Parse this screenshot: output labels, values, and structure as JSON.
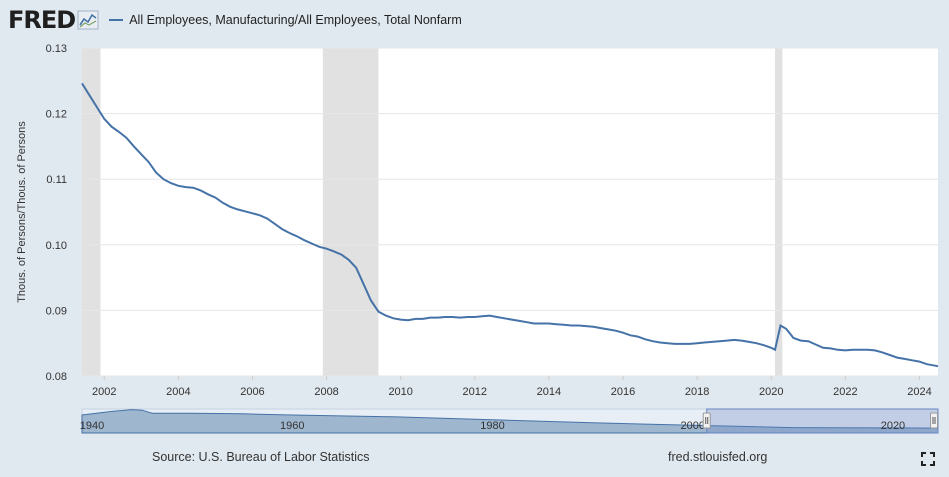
{
  "header": {
    "logo_text": "FRED",
    "legend_label": "All Employees, Manufacturing/All Employees, Total Nonfarm"
  },
  "footer": {
    "source": "Source: U.S. Bureau of Labor Statistics",
    "url": "fred.stlouisfed.org"
  },
  "colors": {
    "series": "#4572a7",
    "recession": "#e1e1e1",
    "page_bg": "#e1e9f0",
    "plot_bg": "#ffffff"
  },
  "icons": [
    "fred-chart-icon",
    "fullscreen-icon"
  ],
  "chart_data": {
    "type": "line",
    "title": "",
    "ylabel": "Thous. of Persons/Thous. of Persons",
    "xlabel": "",
    "ylim": [
      0.08,
      0.13
    ],
    "xlim": [
      2001.4,
      2024.5
    ],
    "yticks": [
      "0.08",
      "0.09",
      "0.10",
      "0.11",
      "0.12",
      "0.13"
    ],
    "xticks": [
      "2002",
      "2004",
      "2006",
      "2008",
      "2010",
      "2012",
      "2014",
      "2016",
      "2018",
      "2020",
      "2022",
      "2024"
    ],
    "grid": true,
    "legend_position": "top",
    "recessions": [
      [
        2001.4,
        2001.9
      ],
      [
        2007.9,
        2009.4
      ],
      [
        2020.1,
        2020.3
      ]
    ],
    "series": [
      {
        "name": "All Employees, Manufacturing/All Employees, Total Nonfarm",
        "x": [
          2001.4,
          2001.6,
          2001.8,
          2002.0,
          2002.2,
          2002.4,
          2002.6,
          2002.8,
          2003.0,
          2003.2,
          2003.4,
          2003.6,
          2003.8,
          2004.0,
          2004.2,
          2004.4,
          2004.6,
          2004.8,
          2005.0,
          2005.2,
          2005.4,
          2005.6,
          2005.8,
          2006.0,
          2006.2,
          2006.4,
          2006.6,
          2006.8,
          2007.0,
          2007.2,
          2007.4,
          2007.6,
          2007.8,
          2008.0,
          2008.2,
          2008.4,
          2008.6,
          2008.8,
          2009.0,
          2009.2,
          2009.4,
          2009.6,
          2009.8,
          2010.0,
          2010.2,
          2010.4,
          2010.6,
          2010.8,
          2011.0,
          2011.2,
          2011.4,
          2011.6,
          2011.8,
          2012.0,
          2012.2,
          2012.4,
          2012.6,
          2012.8,
          2013.0,
          2013.2,
          2013.4,
          2013.6,
          2013.8,
          2014.0,
          2014.2,
          2014.4,
          2014.6,
          2014.8,
          2015.0,
          2015.2,
          2015.4,
          2015.6,
          2015.8,
          2016.0,
          2016.2,
          2016.4,
          2016.6,
          2016.8,
          2017.0,
          2017.2,
          2017.4,
          2017.6,
          2017.8,
          2018.0,
          2018.2,
          2018.4,
          2018.6,
          2018.8,
          2019.0,
          2019.2,
          2019.4,
          2019.6,
          2019.8,
          2020.0,
          2020.1,
          2020.25,
          2020.4,
          2020.6,
          2020.8,
          2021.0,
          2021.2,
          2021.4,
          2021.6,
          2021.8,
          2022.0,
          2022.2,
          2022.4,
          2022.6,
          2022.8,
          2023.0,
          2023.2,
          2023.4,
          2023.6,
          2023.8,
          2024.0,
          2024.2,
          2024.5
        ],
        "values": [
          0.1246,
          0.1228,
          0.121,
          0.1192,
          0.118,
          0.1172,
          0.1163,
          0.115,
          0.1138,
          0.1126,
          0.111,
          0.11,
          0.1094,
          0.109,
          0.1088,
          0.1087,
          0.1083,
          0.1077,
          0.1072,
          0.1064,
          0.1058,
          0.1054,
          0.1051,
          0.1048,
          0.1045,
          0.104,
          0.1032,
          0.1024,
          0.1018,
          0.1013,
          0.1007,
          0.1002,
          0.0997,
          0.0994,
          0.099,
          0.0985,
          0.0977,
          0.0965,
          0.094,
          0.0915,
          0.0898,
          0.0892,
          0.0888,
          0.0886,
          0.0885,
          0.0887,
          0.0887,
          0.0889,
          0.0889,
          0.089,
          0.089,
          0.0889,
          0.089,
          0.089,
          0.0891,
          0.0892,
          0.089,
          0.0888,
          0.0886,
          0.0884,
          0.0882,
          0.088,
          0.088,
          0.088,
          0.0879,
          0.0878,
          0.0877,
          0.0877,
          0.0876,
          0.0875,
          0.0873,
          0.0871,
          0.0869,
          0.0866,
          0.0862,
          0.086,
          0.0856,
          0.0853,
          0.0851,
          0.085,
          0.0849,
          0.0849,
          0.0849,
          0.085,
          0.0851,
          0.0852,
          0.0853,
          0.0854,
          0.0855,
          0.0854,
          0.0852,
          0.085,
          0.0847,
          0.0843,
          0.084,
          0.0877,
          0.0872,
          0.0858,
          0.0854,
          0.0853,
          0.0848,
          0.0843,
          0.0842,
          0.084,
          0.0839,
          0.084,
          0.084,
          0.084,
          0.0839,
          0.0836,
          0.0832,
          0.0828,
          0.0826,
          0.0824,
          0.0822,
          0.0818,
          0.0815
        ]
      }
    ],
    "navigator": {
      "labels": [
        "1940",
        "1960",
        "1980",
        "2000",
        "2020"
      ],
      "x": [
        1939,
        1942,
        1944,
        1945,
        1946,
        1950,
        1955,
        1960,
        1970,
        1980,
        1990,
        2000,
        2010,
        2020,
        2024.5
      ],
      "values": [
        0.3,
        0.36,
        0.39,
        0.38,
        0.33,
        0.33,
        0.32,
        0.3,
        0.27,
        0.22,
        0.17,
        0.13,
        0.09,
        0.085,
        0.081
      ],
      "ylim": [
        0,
        0.4
      ],
      "xlim": [
        1939,
        2024.5
      ],
      "selection": [
        2001.4,
        2024.5
      ]
    }
  }
}
